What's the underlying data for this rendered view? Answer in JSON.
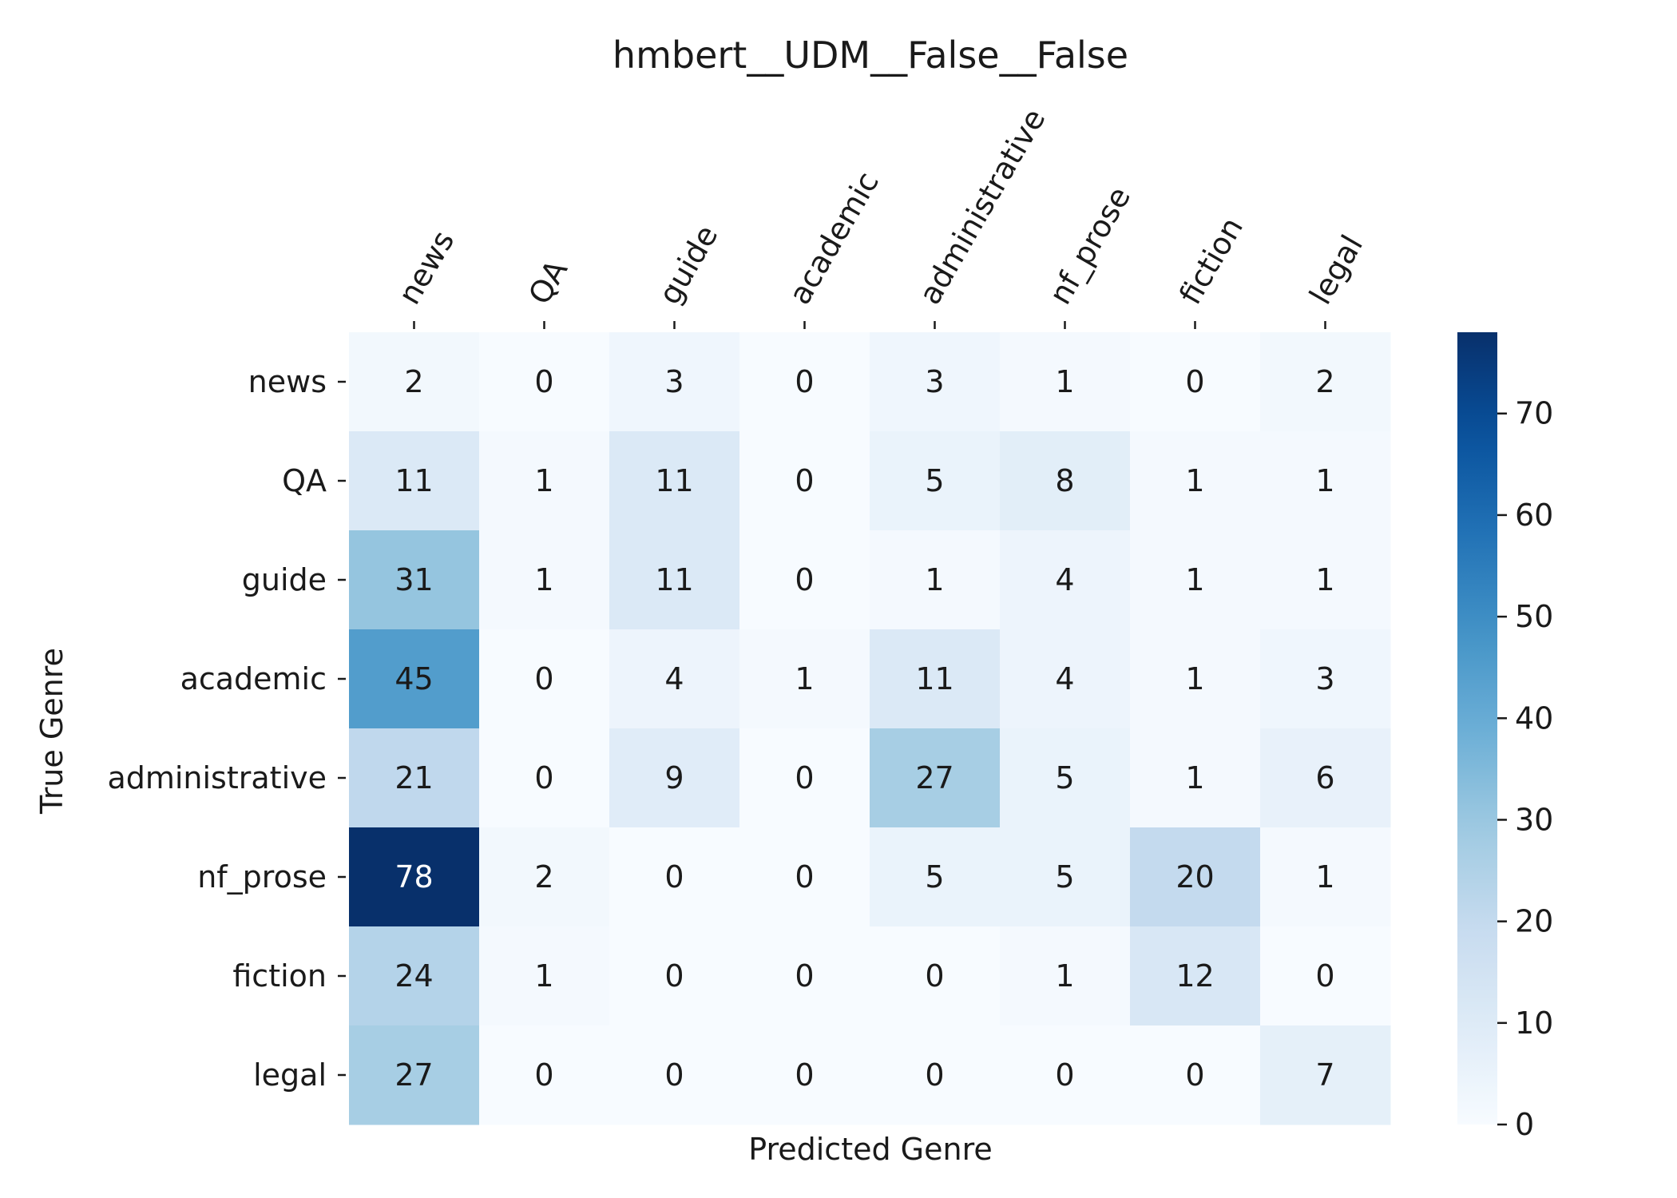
{
  "chart_data": {
    "type": "heatmap",
    "title": "hmbert__UDM__False__False",
    "xlabel": "Predicted Genre",
    "ylabel": "True Genre",
    "x_categories": [
      "news",
      "QA",
      "guide",
      "academic",
      "administrative",
      "nf_prose",
      "fiction",
      "legal"
    ],
    "y_categories": [
      "news",
      "QA",
      "guide",
      "academic",
      "administrative",
      "nf_prose",
      "fiction",
      "legal"
    ],
    "values": [
      [
        2,
        0,
        3,
        0,
        3,
        1,
        0,
        2
      ],
      [
        11,
        1,
        11,
        0,
        5,
        8,
        1,
        1
      ],
      [
        31,
        1,
        11,
        0,
        1,
        4,
        1,
        1
      ],
      [
        45,
        0,
        4,
        1,
        11,
        4,
        1,
        3
      ],
      [
        21,
        0,
        9,
        0,
        27,
        5,
        1,
        6
      ],
      [
        78,
        2,
        0,
        0,
        5,
        5,
        20,
        1
      ],
      [
        24,
        1,
        0,
        0,
        0,
        1,
        12,
        0
      ],
      [
        27,
        0,
        0,
        0,
        0,
        0,
        0,
        7
      ]
    ],
    "colorbar": {
      "colormap": "Blues",
      "range": [
        0,
        78
      ],
      "ticks": [
        0,
        10,
        20,
        30,
        40,
        50,
        60,
        70
      ]
    }
  }
}
